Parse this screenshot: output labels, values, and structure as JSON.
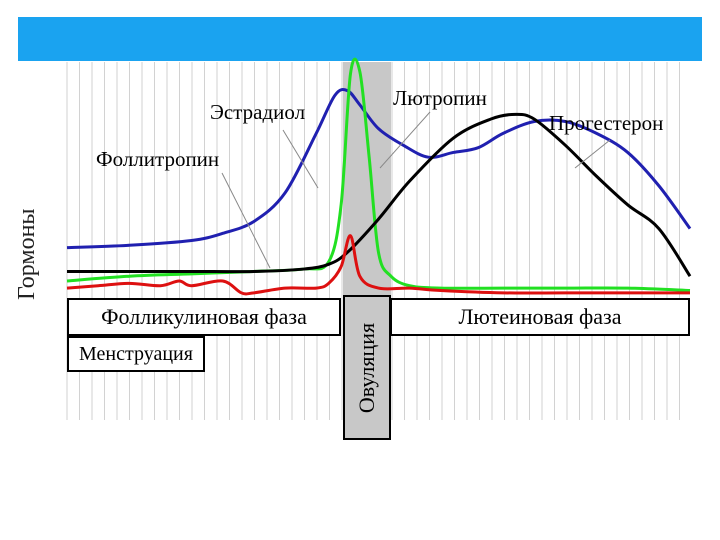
{
  "chart_data": {
    "type": "line",
    "ylabel": "Гормоны",
    "xrange": [
      0,
      100
    ],
    "yrange": [
      0,
      100
    ],
    "grid": true,
    "series": [
      {
        "name": "Эстрадиол",
        "color": "#2020b0",
        "x": [
          0,
          10,
          20,
          25,
          30,
          35,
          40,
          43,
          45,
          47,
          50,
          54,
          58,
          62,
          66,
          70,
          75,
          80,
          85,
          90,
          95,
          100
        ],
        "y": [
          22,
          23,
          25,
          28,
          33,
          45,
          70,
          86,
          88,
          82,
          72,
          65,
          60,
          62,
          64,
          70,
          75,
          75,
          70,
          62,
          48,
          30
        ]
      },
      {
        "name": "Лютропин",
        "color": "#22e022",
        "x": [
          0,
          10,
          20,
          30,
          38,
          42,
          44,
          45.5,
          47,
          48.5,
          50,
          52,
          55,
          60,
          70,
          80,
          90,
          100
        ],
        "y": [
          8,
          10,
          11,
          12,
          13,
          16,
          40,
          95,
          96,
          60,
          20,
          10,
          6,
          5,
          5,
          5,
          5,
          4
        ]
      },
      {
        "name": "Прогестерон",
        "color": "#000000",
        "x": [
          0,
          10,
          20,
          30,
          38,
          42,
          45,
          50,
          55,
          62,
          68,
          72,
          75,
          80,
          85,
          90,
          95,
          100
        ],
        "y": [
          12,
          12,
          12,
          12,
          13,
          15,
          20,
          34,
          50,
          68,
          76,
          78,
          76,
          65,
          52,
          40,
          30,
          10
        ]
      },
      {
        "name": "Фоллитропин",
        "color": "#dd1010",
        "x": [
          0,
          5,
          10,
          15,
          18,
          20,
          25,
          28,
          30,
          35,
          40,
          42,
          44,
          45.5,
          47,
          50,
          55,
          60,
          70,
          80,
          90,
          100
        ],
        "y": [
          5,
          6,
          7,
          6,
          8,
          6,
          8,
          3,
          3,
          5,
          5,
          7,
          14,
          27,
          10,
          5,
          5,
          4,
          3,
          3,
          3,
          3
        ]
      }
    ],
    "labels": {
      "estradiol": "Эстрадиол",
      "lutropin": "Лютропин",
      "progesterone": "Прогестерон",
      "follitropin": "Фоллитропин"
    },
    "phases": {
      "follicular": "Фолликулиновая фаза",
      "luteal": "Лютеиновая фаза",
      "ovulation": "Овуляция",
      "menstruation": "Менструация"
    }
  }
}
